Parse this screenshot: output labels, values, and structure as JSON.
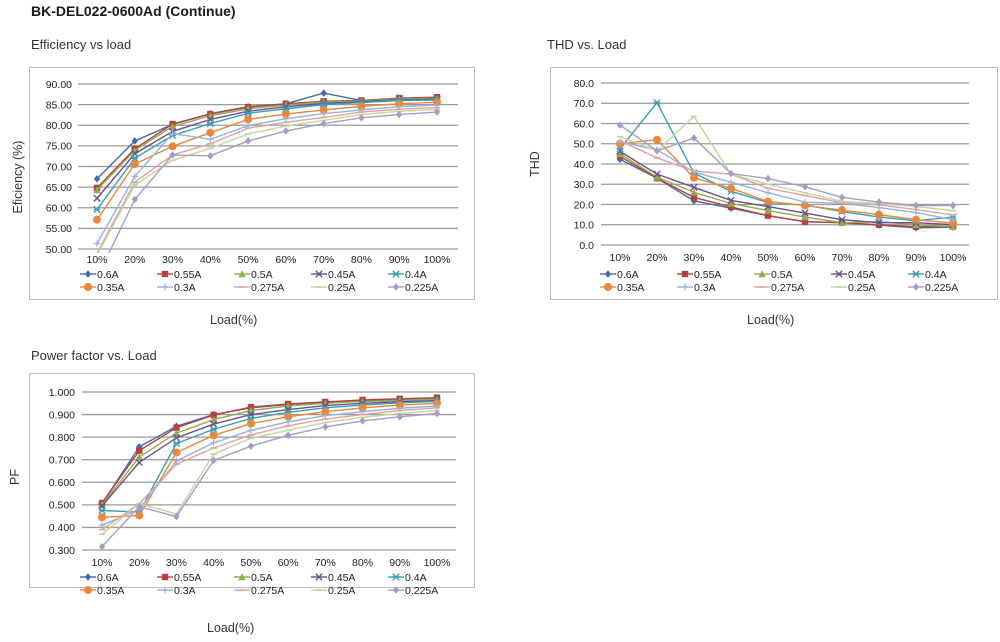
{
  "page": {
    "title": "BK-DEL022-0600Ad (Continue)"
  },
  "series_styles": [
    {
      "name": "0.6A",
      "color": "#3f6cae",
      "marker": "diamond"
    },
    {
      "name": "0.55A",
      "color": "#b8413d",
      "marker": "square"
    },
    {
      "name": "0.5A",
      "color": "#8fae4a",
      "marker": "triangle"
    },
    {
      "name": "0.45A",
      "color": "#6b4f92",
      "marker": "x"
    },
    {
      "name": "0.4A",
      "color": "#3a9fb5",
      "marker": "star"
    },
    {
      "name": "0.35A",
      "color": "#e9883a",
      "marker": "circle"
    },
    {
      "name": "0.3A",
      "color": "#97b2da",
      "marker": "plus"
    },
    {
      "name": "0.275A",
      "color": "#e0a3a1",
      "marker": "dash"
    },
    {
      "name": "0.25A",
      "color": "#c3d69b",
      "marker": "dash"
    },
    {
      "name": "0.225A",
      "color": "#a99bc6",
      "marker": "diamond"
    }
  ],
  "chart_data": [
    {
      "id": "efficiency",
      "type": "line",
      "title": "Efficiency vs load",
      "xlabel": "Load(%)",
      "ylabel": "Eficiency (%)",
      "categories": [
        "10%",
        "20%",
        "30%",
        "40%",
        "50%",
        "60%",
        "70%",
        "80%",
        "90%",
        "100%"
      ],
      "ylim": [
        50,
        90
      ],
      "yticks": [
        "50.00",
        "55.00",
        "60.00",
        "65.00",
        "70.00",
        "75.00",
        "80.00",
        "85.00",
        "90.00"
      ],
      "grid": true,
      "legend": "bottom",
      "series": [
        {
          "name": "0.6A",
          "values": [
            67.0,
            76.2,
            80.2,
            82.8,
            84.5,
            85.2,
            87.8,
            86.0,
            86.5,
            86.6
          ]
        },
        {
          "name": "0.55A",
          "values": [
            64.8,
            74.3,
            80.3,
            82.7,
            84.4,
            85.2,
            85.8,
            86.0,
            86.6,
            86.8
          ]
        },
        {
          "name": "0.5A",
          "values": [
            64.3,
            73.9,
            79.7,
            82.3,
            84.0,
            84.9,
            85.6,
            85.9,
            86.4,
            86.5
          ]
        },
        {
          "name": "0.45A",
          "values": [
            62.3,
            73.1,
            78.5,
            81.4,
            83.4,
            84.5,
            85.3,
            85.7,
            86.2,
            86.3
          ]
        },
        {
          "name": "0.4A",
          "values": [
            59.6,
            72.0,
            77.5,
            80.4,
            82.9,
            84.0,
            85.0,
            85.5,
            86.0,
            86.1
          ]
        },
        {
          "name": "0.35A",
          "values": [
            57.1,
            70.6,
            74.9,
            78.2,
            81.4,
            82.7,
            83.7,
            84.6,
            85.2,
            85.6
          ]
        },
        {
          "name": "0.3A",
          "values": [
            51.3,
            67.6,
            78.0,
            76.6,
            79.9,
            81.6,
            82.8,
            83.7,
            84.5,
            84.9
          ]
        },
        {
          "name": "0.275A",
          "values": [
            49.0,
            66.2,
            72.8,
            75.5,
            79.3,
            80.7,
            81.9,
            83.2,
            83.9,
            84.3
          ]
        },
        {
          "name": "0.25A",
          "values": [
            48.5,
            65.5,
            71.5,
            74.4,
            77.9,
            79.8,
            81.2,
            82.6,
            83.4,
            83.8
          ]
        },
        {
          "name": "0.225A",
          "values": [
            43.0,
            62.0,
            72.8,
            72.6,
            76.2,
            78.6,
            80.4,
            81.8,
            82.6,
            83.2
          ]
        }
      ]
    },
    {
      "id": "thd",
      "type": "line",
      "title": "THD vs. Load",
      "xlabel": "Load(%)",
      "ylabel": "THD",
      "categories": [
        "10%",
        "20%",
        "30%",
        "40%",
        "50%",
        "60%",
        "70%",
        "80%",
        "90%",
        "100%"
      ],
      "ylim": [
        0,
        80
      ],
      "yticks": [
        "0.0",
        "10.0",
        "20.0",
        "30.0",
        "40.0",
        "50.0",
        "60.0",
        "70.0",
        "80.0"
      ],
      "grid": true,
      "legend": "bottom",
      "series": [
        {
          "name": "0.6A",
          "values": [
            42.3,
            33.0,
            21.8,
            18.2,
            14.5,
            11.5,
            11.0,
            9.8,
            8.5,
            8.8
          ]
        },
        {
          "name": "0.55A",
          "values": [
            43.8,
            33.0,
            23.5,
            18.8,
            14.5,
            11.5,
            11.0,
            10.0,
            9.0,
            9.2
          ]
        },
        {
          "name": "0.5A",
          "values": [
            45.0,
            33.5,
            26.0,
            20.5,
            17.0,
            13.8,
            11.0,
            11.5,
            10.0,
            9.0
          ]
        },
        {
          "name": "0.45A",
          "values": [
            46.2,
            35.0,
            28.5,
            22.0,
            19.0,
            15.8,
            12.5,
            11.0,
            11.0,
            10.0
          ]
        },
        {
          "name": "0.4A",
          "values": [
            47.5,
            70.3,
            35.5,
            26.5,
            21.0,
            19.8,
            16.5,
            13.8,
            12.0,
            13.8
          ]
        },
        {
          "name": "0.35A",
          "values": [
            50.0,
            52.0,
            33.2,
            28.0,
            21.5,
            19.5,
            17.2,
            15.0,
            12.5,
            10.8
          ]
        },
        {
          "name": "0.3A",
          "values": [
            51.0,
            47.0,
            36.0,
            31.0,
            25.8,
            21.2,
            20.5,
            18.5,
            16.0,
            12.5
          ]
        },
        {
          "name": "0.275A",
          "values": [
            51.5,
            43.0,
            36.5,
            35.0,
            28.0,
            24.5,
            20.8,
            19.8,
            17.5,
            14.8
          ]
        },
        {
          "name": "0.25A",
          "values": [
            53.5,
            46.5,
            63.5,
            35.0,
            30.0,
            25.8,
            21.5,
            20.5,
            19.0,
            17.0
          ]
        },
        {
          "name": "0.225A",
          "values": [
            59.2,
            46.5,
            52.8,
            35.3,
            32.8,
            28.8,
            23.5,
            21.2,
            19.5,
            19.5
          ]
        }
      ]
    },
    {
      "id": "pf",
      "type": "line",
      "title": "Power factor vs. Load",
      "xlabel": "Load(%)",
      "ylabel": "PF",
      "categories": [
        "10%",
        "20%",
        "30%",
        "40%",
        "50%",
        "60%",
        "70%",
        "80%",
        "90%",
        "100%"
      ],
      "ylim": [
        0.3,
        1.0
      ],
      "yticks": [
        "0.300",
        "0.400",
        "0.500",
        "0.600",
        "0.700",
        "0.800",
        "0.900",
        "1.000"
      ],
      "grid": true,
      "legend": "bottom",
      "series": [
        {
          "name": "0.6A",
          "values": [
            0.505,
            0.757,
            0.848,
            0.9,
            0.93,
            0.945,
            0.955,
            0.962,
            0.967,
            0.97
          ]
        },
        {
          "name": "0.55A",
          "values": [
            0.508,
            0.74,
            0.842,
            0.898,
            0.933,
            0.947,
            0.956,
            0.965,
            0.97,
            0.975
          ]
        },
        {
          "name": "0.5A",
          "values": [
            0.5,
            0.712,
            0.818,
            0.878,
            0.918,
            0.938,
            0.95,
            0.958,
            0.963,
            0.968
          ]
        },
        {
          "name": "0.45A",
          "values": [
            0.495,
            0.688,
            0.797,
            0.858,
            0.9,
            0.922,
            0.94,
            0.95,
            0.957,
            0.962
          ]
        },
        {
          "name": "0.4A",
          "values": [
            0.475,
            0.468,
            0.772,
            0.835,
            0.883,
            0.91,
            0.93,
            0.942,
            0.952,
            0.958
          ]
        },
        {
          "name": "0.35A",
          "values": [
            0.445,
            0.453,
            0.732,
            0.808,
            0.86,
            0.89,
            0.913,
            0.93,
            0.942,
            0.95
          ]
        },
        {
          "name": "0.3A",
          "values": [
            0.41,
            0.48,
            0.695,
            0.775,
            0.83,
            0.868,
            0.895,
            0.913,
            0.928,
            0.938
          ]
        },
        {
          "name": "0.275A",
          "values": [
            0.39,
            0.505,
            0.68,
            0.752,
            0.81,
            0.85,
            0.88,
            0.9,
            0.918,
            0.93
          ]
        },
        {
          "name": "0.25A",
          "values": [
            0.37,
            0.505,
            0.46,
            0.725,
            0.795,
            0.83,
            0.865,
            0.888,
            0.905,
            0.918
          ]
        },
        {
          "name": "0.225A",
          "values": [
            0.315,
            0.492,
            0.448,
            0.697,
            0.76,
            0.808,
            0.845,
            0.872,
            0.89,
            0.905
          ]
        }
      ]
    }
  ]
}
